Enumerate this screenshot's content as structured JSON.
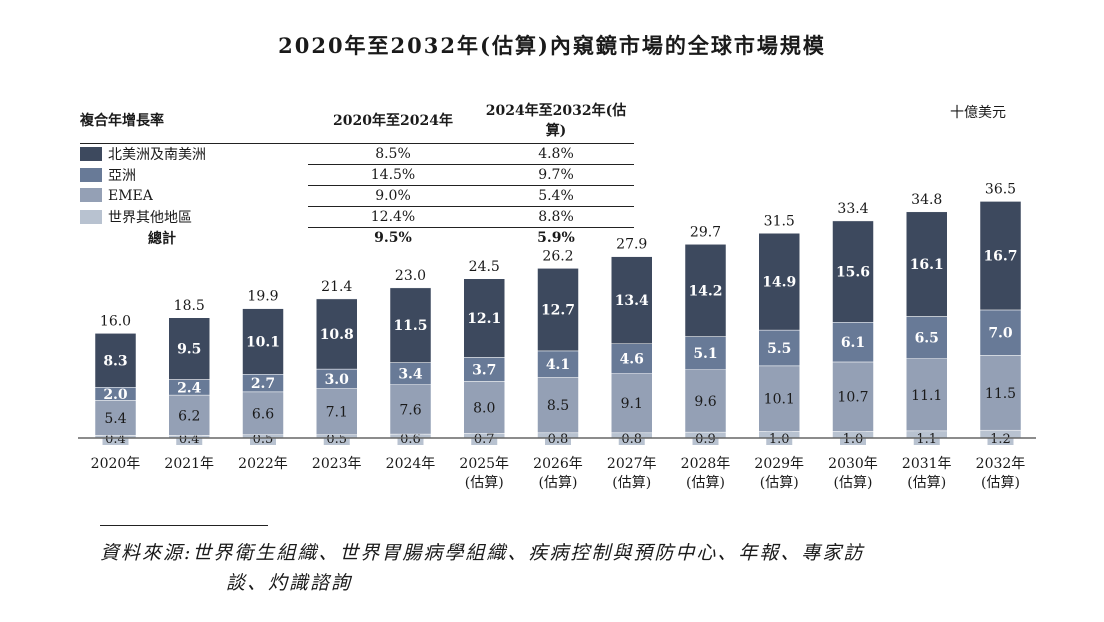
{
  "title": "2020年至2032年(估算)內窺鏡市場的全球市場規模",
  "unit": "十億美元",
  "cagr_table": {
    "header": [
      "複合年增長率",
      "2020年至2024年",
      "2024年至2032年(估算)"
    ],
    "rows": [
      {
        "label": "北美洲及南美洲",
        "a": "8.5%",
        "b": "4.8%"
      },
      {
        "label": "亞洲",
        "a": "14.5%",
        "b": "9.7%"
      },
      {
        "label": "EMEA",
        "a": "9.0%",
        "b": "5.4%"
      },
      {
        "label": "世界其他地區",
        "a": "12.4%",
        "b": "8.8%"
      }
    ],
    "total": {
      "label": "總計",
      "a": "9.5%",
      "b": "5.9%"
    }
  },
  "source": {
    "line1": "資料來源:世界衛生組織、世界胃腸病學組織、疾病控制與預防中心、年報、專家訪",
    "line2": "談、灼識諮詢"
  },
  "chart_data": {
    "type": "bar",
    "stacked": true,
    "categories": [
      "2020年",
      "2021年",
      "2022年",
      "2023年",
      "2024年",
      "2025年\n(估算)",
      "2026年\n(估算)",
      "2027年\n(估算)",
      "2028年\n(估算)",
      "2029年\n(估算)",
      "2030年\n(估算)",
      "2031年\n(估算)",
      "2032年\n(估算)"
    ],
    "series": [
      {
        "name": "世界其他地區",
        "color": "#b8c2d0",
        "values": [
          0.4,
          0.4,
          0.5,
          0.5,
          0.6,
          0.7,
          0.8,
          0.8,
          0.9,
          1.0,
          1.0,
          1.1,
          1.2
        ]
      },
      {
        "name": "EMEA",
        "color": "#94a0b5",
        "values": [
          5.4,
          6.2,
          6.6,
          7.1,
          7.6,
          8.0,
          8.5,
          9.1,
          9.6,
          10.1,
          10.7,
          11.1,
          11.5
        ]
      },
      {
        "name": "亞洲",
        "color": "#687a97",
        "values": [
          2.0,
          2.4,
          2.7,
          3.0,
          3.4,
          3.7,
          4.1,
          4.6,
          5.1,
          5.5,
          6.1,
          6.5,
          7.0
        ]
      },
      {
        "name": "北美洲及南美洲",
        "color": "#3d495e",
        "values": [
          8.3,
          9.5,
          10.1,
          10.8,
          11.5,
          12.1,
          12.7,
          13.4,
          14.2,
          14.9,
          15.6,
          16.1,
          16.7
        ]
      }
    ],
    "totals": [
      "16.0",
      "18.5",
      "19.9",
      "21.4",
      "23.0",
      "24.5",
      "26.2",
      "27.9",
      "29.7",
      "31.5",
      "33.4",
      "34.8",
      "36.5"
    ],
    "ylim": [
      0,
      40
    ],
    "grid": false,
    "legend": "top-left"
  }
}
